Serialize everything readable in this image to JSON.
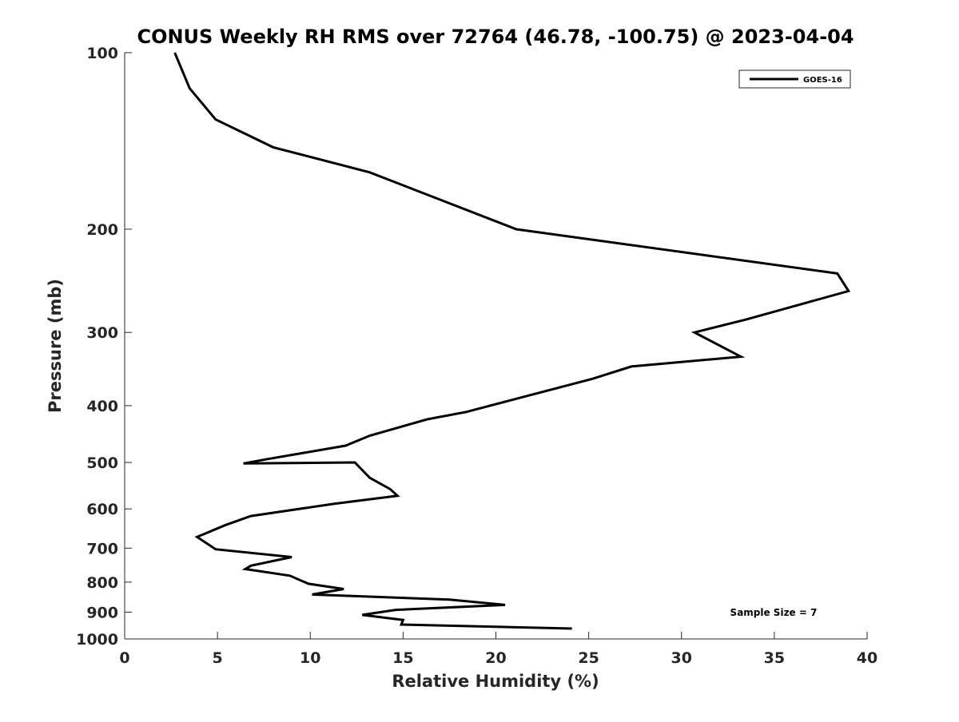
{
  "chart_data": {
    "type": "line",
    "title": "CONUS Weekly RH RMS over 72764 (46.78, -100.75) @ 2023-04-04",
    "xlabel": "Relative Humidity (%)",
    "ylabel": "Pressure (mb)",
    "xlim": [
      0,
      40
    ],
    "ylim": [
      1000,
      100
    ],
    "y_scale": "log",
    "y_reversed": true,
    "grid": false,
    "legend_position": "top-right",
    "xticks": [
      0,
      5,
      10,
      15,
      20,
      25,
      30,
      35,
      40
    ],
    "yticks": [
      100,
      200,
      300,
      400,
      500,
      600,
      700,
      800,
      900,
      1000
    ],
    "series": [
      {
        "name": "GOES-16",
        "color": "#000000",
        "x": [
          2.7,
          3.5,
          4.9,
          8.0,
          13.2,
          21.1,
          38.4,
          39.0,
          33.5,
          30.7,
          33.2,
          27.3,
          25.2,
          18.4,
          16.3,
          13.2,
          11.9,
          7.6,
          6.4,
          12.4,
          13.2,
          14.3,
          14.7,
          11.3,
          6.8,
          5.4,
          3.9,
          4.9,
          9.0,
          6.8,
          6.5,
          8.9,
          9.9,
          11.8,
          10.1,
          17.5,
          20.5,
          14.6,
          12.8,
          15.0,
          14.9,
          24.1
        ],
        "y": [
          100,
          115,
          130,
          145,
          160,
          200,
          238,
          255,
          285,
          300,
          330,
          343,
          360,
          410,
          422,
          450,
          468,
          494,
          502,
          500,
          531,
          555,
          570,
          588,
          617,
          640,
          670,
          703,
          725,
          750,
          760,
          780,
          805,
          822,
          840,
          857,
          875,
          892,
          910,
          928,
          945,
          960
        ]
      }
    ],
    "annotations": [
      "Sample Size = 7"
    ]
  }
}
